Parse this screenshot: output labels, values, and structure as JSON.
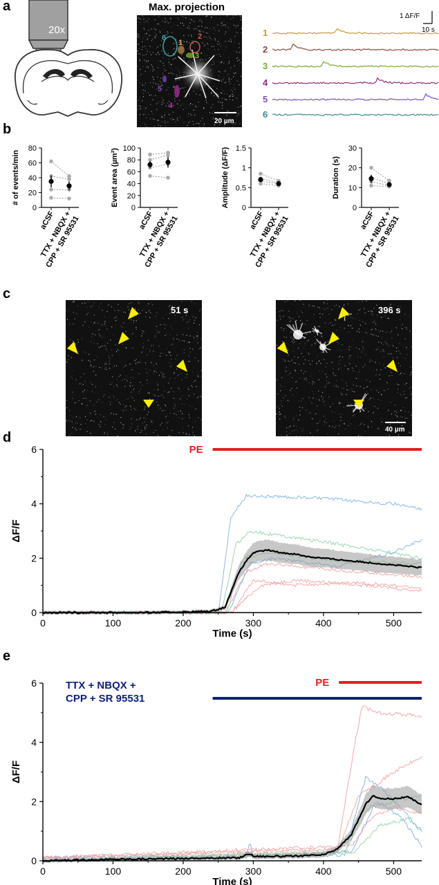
{
  "panels": {
    "a": "a",
    "b": "b",
    "c": "c",
    "d": "d",
    "e": "e"
  },
  "panel_a": {
    "objective_label": "20x",
    "projection_title": "Max. projection",
    "scale_bar": "20 µm",
    "roi_numbers": [
      "1",
      "2",
      "3",
      "4",
      "5",
      "6"
    ],
    "roi_colors": [
      "#e8a050",
      "#c86050",
      "#8dbb30",
      "#b030a0",
      "#8050d0",
      "#40a0a8"
    ],
    "trace_labels": [
      "1",
      "2",
      "3",
      "4",
      "5",
      "6"
    ],
    "trace_colors": [
      "#c79a3b",
      "#8a4a3c",
      "#7aa832",
      "#8a2a82",
      "#7b4ec0",
      "#3c8a86"
    ],
    "scalebar_y": "1 ΔF/F",
    "scalebar_x": "10 s"
  },
  "panel_b": {
    "xticklabels": [
      "aCSF",
      "TTX + NBQX +\nCPP + SR 95531"
    ],
    "xtick_line1": "aCSF",
    "xtick_line2a": "TTX + NBQX +",
    "xtick_line2b": "CPP + SR 95531"
  },
  "panel_c": {
    "time_left": "51 s",
    "time_right": "396 s",
    "scale_bar": "40 µm",
    "arrow_color": "#ffee00"
  },
  "panel_d": {
    "drug_label": "PE",
    "drug_color": "#e02020",
    "ylabel": "ΔF/F",
    "xlabel": "Time (s)"
  },
  "panel_e": {
    "drug_label_1_line1": "TTX + NBQX +",
    "drug_label_1_line2": "CPP + SR 95531",
    "drug_color_1": "#0c1f7a",
    "drug_label_2": "PE",
    "drug_color_2": "#e02020",
    "ylabel": "ΔF/F",
    "xlabel": "Time (s)"
  },
  "chart_data": [
    {
      "type": "scatter",
      "ylabel": "# of events/min",
      "categories": [
        "aCSF",
        "TTX + NBQX + CPP + SR 95531"
      ],
      "ylim": [
        0,
        80
      ],
      "yticks": [
        0,
        20,
        40,
        60,
        80
      ],
      "pairs": [
        [
          62,
          42
        ],
        [
          42,
          38
        ],
        [
          24,
          24
        ],
        [
          13,
          12
        ]
      ],
      "mean": [
        35,
        29
      ],
      "sem": [
        8,
        6
      ]
    },
    {
      "type": "scatter",
      "ylabel": "Event area (µm²)",
      "categories": [
        "aCSF",
        "TTX + NBQX + CPP + SR 95531"
      ],
      "ylim": [
        0,
        100
      ],
      "yticks": [
        0,
        20,
        40,
        60,
        80,
        100
      ],
      "pairs": [
        [
          89,
          92
        ],
        [
          80,
          88
        ],
        [
          67,
          73
        ],
        [
          53,
          50
        ]
      ],
      "mean": [
        72,
        76
      ],
      "sem": [
        6,
        9
      ]
    },
    {
      "type": "scatter",
      "ylabel": "Amplitude (ΔF/F)",
      "categories": [
        "aCSF",
        "TTX + NBQX + CPP + SR 95531"
      ],
      "ylim": [
        0,
        1.5
      ],
      "yticks": [
        0,
        0.5,
        1,
        1.5
      ],
      "yticklabels": [
        "0",
        "0.5",
        "1",
        "1.5"
      ],
      "pairs": [
        [
          0.85,
          0.67
        ],
        [
          0.73,
          0.62
        ],
        [
          0.66,
          0.6
        ],
        [
          0.6,
          0.55
        ]
      ],
      "mean": [
        0.7,
        0.6
      ],
      "sem": [
        0.05,
        0.03
      ]
    },
    {
      "type": "scatter",
      "ylabel": "Duration (s)",
      "categories": [
        "aCSF",
        "TTX + NBQX + CPP + SR 95531"
      ],
      "ylim": [
        0,
        30
      ],
      "yticks": [
        0,
        10,
        20,
        30
      ],
      "pairs": [
        [
          20,
          13.5
        ],
        [
          15,
          12
        ],
        [
          13,
          11
        ],
        [
          11,
          10.5
        ]
      ],
      "mean": [
        14.5,
        11.5
      ],
      "sem": [
        2,
        1
      ]
    },
    {
      "type": "line",
      "ylabel": "ΔF/F",
      "xlabel": "Time (s)",
      "xlim": [
        0,
        540
      ],
      "ylim": [
        0,
        6
      ],
      "xticks": [
        0,
        100,
        200,
        300,
        400,
        500
      ],
      "yticks": [
        0,
        2,
        4,
        6
      ],
      "drug_bars": [
        {
          "label": "PE",
          "start": 242,
          "end": 540
        }
      ],
      "mean": {
        "x": [
          0,
          50,
          100,
          150,
          200,
          240,
          260,
          270,
          280,
          290,
          300,
          320,
          340,
          360,
          380,
          400,
          420,
          440,
          460,
          480,
          500,
          520,
          540
        ],
        "y": [
          0,
          0,
          0,
          0,
          0.02,
          0.05,
          0.2,
          0.9,
          1.5,
          1.9,
          2.2,
          2.3,
          2.2,
          2.15,
          2.05,
          2.0,
          1.95,
          1.9,
          1.85,
          1.8,
          1.75,
          1.7,
          1.65
        ]
      },
      "traces": [
        {
          "color": "#7ab0e0",
          "x": [
            0,
            250,
            268,
            290,
            400,
            500,
            540
          ],
          "y": [
            0,
            0,
            3.5,
            4.3,
            4.2,
            4.0,
            3.8
          ]
        },
        {
          "color": "#8fd3a0",
          "x": [
            0,
            255,
            275,
            295,
            400,
            500,
            540
          ],
          "y": [
            0,
            0,
            2.5,
            3.0,
            2.6,
            2.2,
            2.0
          ]
        },
        {
          "color": "#f0a0a0",
          "x": [
            0,
            260,
            290,
            320,
            400,
            500,
            540
          ],
          "y": [
            0,
            0,
            1.5,
            1.8,
            1.6,
            1.4,
            1.3
          ]
        },
        {
          "color": "#7ab0e0",
          "x": [
            0,
            265,
            295,
            330,
            420,
            500,
            540
          ],
          "y": [
            0,
            0,
            1.8,
            2.0,
            1.7,
            2.2,
            2.7
          ]
        },
        {
          "color": "#f0a0a0",
          "x": [
            0,
            270,
            300,
            350,
            450,
            540
          ],
          "y": [
            0,
            0,
            1.2,
            1.0,
            1.1,
            0.9
          ]
        },
        {
          "color": "#8fd3a0",
          "x": [
            0,
            262,
            285,
            320,
            420,
            540
          ],
          "y": [
            0,
            0,
            2.0,
            2.2,
            1.9,
            1.8
          ]
        },
        {
          "color": "#f0a0a0",
          "x": [
            0,
            268,
            310,
            360,
            460,
            540
          ],
          "y": [
            0,
            0,
            1.0,
            1.2,
            1.0,
            0.8
          ]
        }
      ]
    },
    {
      "type": "line",
      "ylabel": "ΔF/F",
      "xlabel": "Time (s)",
      "xlim": [
        0,
        540
      ],
      "ylim": [
        0,
        6
      ],
      "xticks": [
        0,
        100,
        200,
        300,
        400,
        500
      ],
      "yticks": [
        0,
        2,
        4,
        6
      ],
      "drug_bars": [
        {
          "label": "TTX + NBQX + CPP + SR 95531",
          "start": 242,
          "end": 540
        },
        {
          "label": "PE",
          "start": 422,
          "end": 540
        }
      ],
      "mean": {
        "x": [
          0,
          100,
          200,
          280,
          295,
          300,
          350,
          400,
          420,
          440,
          450,
          460,
          470,
          480,
          500,
          520,
          540
        ],
        "y": [
          0,
          0.05,
          0.08,
          0.1,
          0.25,
          0.15,
          0.15,
          0.2,
          0.4,
          0.9,
          1.4,
          1.9,
          2.2,
          2.1,
          2.1,
          2.15,
          1.9
        ]
      },
      "traces": [
        {
          "color": "#f0a0a0",
          "x": [
            0,
            420,
            445,
            455,
            480,
            540
          ],
          "y": [
            0.1,
            0.4,
            4.0,
            5.2,
            5.0,
            4.9
          ]
        },
        {
          "color": "#f0a0a0",
          "x": [
            0,
            420,
            450,
            470,
            500,
            540
          ],
          "y": [
            0.1,
            0.3,
            2.2,
            2.5,
            3.0,
            3.5
          ]
        },
        {
          "color": "#7ab0e0",
          "x": [
            0,
            430,
            460,
            480,
            510,
            540
          ],
          "y": [
            0.1,
            0.2,
            2.8,
            2.5,
            1.8,
            1.0
          ]
        },
        {
          "color": "#8fd3a0",
          "x": [
            0,
            300,
            430,
            465,
            500,
            540
          ],
          "y": [
            0,
            0.2,
            0.3,
            1.8,
            2.0,
            2.2
          ]
        },
        {
          "color": "#7ab0e0",
          "x": [
            0,
            290,
            295,
            300,
            440,
            475,
            510,
            540
          ],
          "y": [
            0,
            0.1,
            0.7,
            0.1,
            0.3,
            2.0,
            1.5,
            0.5
          ]
        },
        {
          "color": "#f0a0a0",
          "x": [
            0,
            440,
            470,
            500,
            540
          ],
          "y": [
            0.1,
            0.5,
            1.5,
            1.8,
            1.6
          ]
        },
        {
          "color": "#8fd3a0",
          "x": [
            0,
            445,
            480,
            520,
            540
          ],
          "y": [
            0,
            0.3,
            1.2,
            1.4,
            1.0
          ]
        }
      ]
    }
  ]
}
